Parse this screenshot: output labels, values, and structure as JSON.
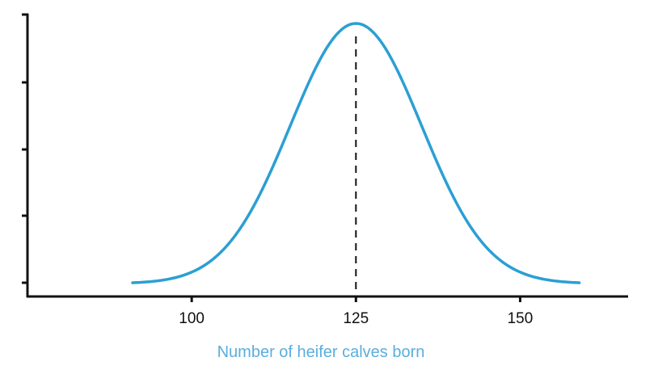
{
  "chart_data": {
    "type": "line",
    "xlabel": "Number of heifer calves born",
    "ylabel": "",
    "xlim": [
      75,
      170
    ],
    "x_ticks": [
      100,
      125,
      150
    ],
    "y_ticks_count": 5,
    "y_tick_labels_shown": false,
    "grid": false,
    "distribution": "normal",
    "mean": 125,
    "std_dev": 10,
    "series": [
      {
        "color": "#2b9fd4",
        "x": [
          91,
          95,
          100,
          105,
          110,
          115,
          120,
          125,
          130,
          135,
          140,
          145,
          150,
          155,
          159
        ],
        "y": [
          0.0,
          0.01,
          0.07,
          0.16,
          0.33,
          0.58,
          0.86,
          1.0,
          0.86,
          0.58,
          0.33,
          0.16,
          0.07,
          0.01,
          0.0
        ]
      }
    ],
    "mean_line": {
      "x": 125,
      "style": "dashed",
      "color": "#111111"
    },
    "colors": {
      "curve": "#2b9fd4",
      "axis": "#111111",
      "xlabel": "#5aaedc"
    }
  }
}
